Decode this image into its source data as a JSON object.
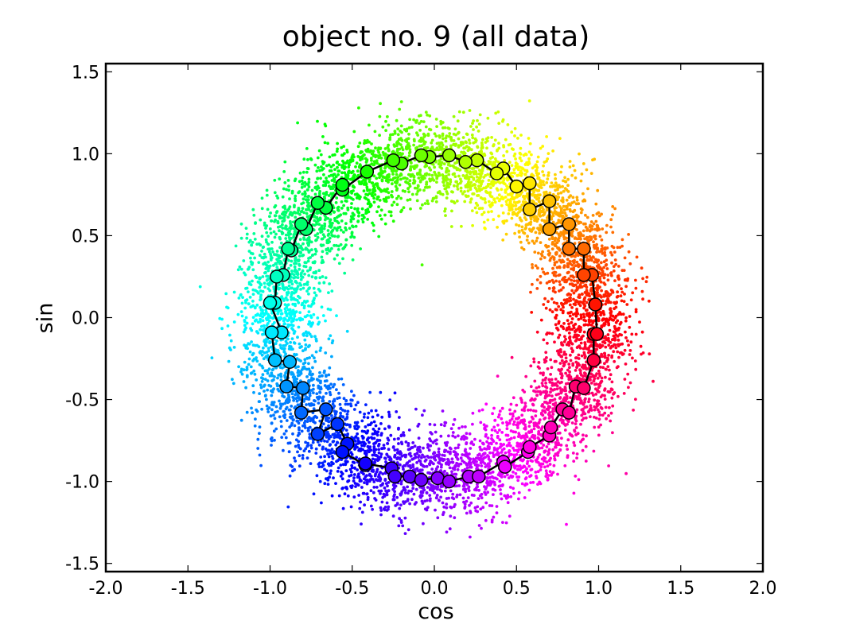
{
  "chart_data": {
    "type": "scatter",
    "title": "object no. 9 (all data)",
    "xlabel": "cos",
    "ylabel": "sin",
    "xlim": [
      -2.0,
      2.0
    ],
    "ylim": [
      -1.55,
      1.55
    ],
    "grid": false,
    "legend": "none",
    "colormap": "hue by angle (red at 0°, yellow 60°, green 120°, cyan 180°, blue 240°, magenta 300°)",
    "x_ticks": [
      -2.0,
      -1.5,
      -1.0,
      -0.5,
      0.0,
      0.5,
      1.0,
      1.5,
      2.0
    ],
    "x_tick_labels": [
      "-2.0",
      "-1.5",
      "-1.0",
      "-0.5",
      "0.0",
      "0.5",
      "1.0",
      "1.5",
      "2.0"
    ],
    "y_ticks": [
      -1.5,
      -1.0,
      -0.5,
      0.0,
      0.5,
      1.0,
      1.5
    ],
    "y_tick_labels": [
      "-1.5",
      "-1.0",
      "-0.5",
      "0.0",
      "0.5",
      "1.0",
      "1.5"
    ],
    "series": [
      {
        "kind": "scatter-cloud",
        "description_of_distribution": "several thousand small points scattered around the unit circle, radius roughly 0.6-1.4, color by angle",
        "approx_count": 7000,
        "radius_mean": 0.97,
        "radius_spread": 0.13
      },
      {
        "kind": "line-with-markers",
        "points": [
          [
            0.98,
            0.08
          ],
          [
            0.96,
            0.26
          ],
          [
            0.91,
            0.26
          ],
          [
            0.91,
            0.42
          ],
          [
            0.82,
            0.42
          ],
          [
            0.82,
            0.57
          ],
          [
            0.7,
            0.54
          ],
          [
            0.7,
            0.71
          ],
          [
            0.58,
            0.66
          ],
          [
            0.58,
            0.82
          ],
          [
            0.5,
            0.8
          ],
          [
            0.42,
            0.91
          ],
          [
            0.38,
            0.88
          ],
          [
            0.26,
            0.96
          ],
          [
            0.19,
            0.95
          ],
          [
            0.09,
            0.99
          ],
          [
            -0.03,
            0.98
          ],
          [
            -0.08,
            0.99
          ],
          [
            -0.2,
            0.94
          ],
          [
            -0.25,
            0.96
          ],
          [
            -0.41,
            0.89
          ],
          [
            -0.56,
            0.78
          ],
          [
            -0.56,
            0.81
          ],
          [
            -0.66,
            0.67
          ],
          [
            -0.71,
            0.7
          ],
          [
            -0.78,
            0.54
          ],
          [
            -0.81,
            0.57
          ],
          [
            -0.87,
            0.41
          ],
          [
            -0.89,
            0.42
          ],
          [
            -0.92,
            0.26
          ],
          [
            -0.96,
            0.25
          ],
          [
            -0.97,
            0.09
          ],
          [
            -1.0,
            0.09
          ],
          [
            -0.93,
            -0.09
          ],
          [
            -0.99,
            -0.09
          ],
          [
            -0.97,
            -0.26
          ],
          [
            -0.88,
            -0.27
          ],
          [
            -0.9,
            -0.42
          ],
          [
            -0.8,
            -0.43
          ],
          [
            -0.81,
            -0.58
          ],
          [
            -0.66,
            -0.56
          ],
          [
            -0.71,
            -0.71
          ],
          [
            -0.59,
            -0.65
          ],
          [
            -0.53,
            -0.77
          ],
          [
            -0.56,
            -0.82
          ],
          [
            -0.42,
            -0.9
          ],
          [
            -0.42,
            -0.89
          ],
          [
            -0.26,
            -0.92
          ],
          [
            -0.24,
            -0.97
          ],
          [
            -0.15,
            -0.97
          ],
          [
            -0.08,
            -0.99
          ],
          [
            0.02,
            -0.98
          ],
          [
            0.09,
            -1.0
          ],
          [
            0.21,
            -0.97
          ],
          [
            0.27,
            -0.97
          ],
          [
            0.42,
            -0.88
          ],
          [
            0.43,
            -0.91
          ],
          [
            0.57,
            -0.82
          ],
          [
            0.58,
            -0.79
          ],
          [
            0.7,
            -0.72
          ],
          [
            0.71,
            -0.67
          ],
          [
            0.78,
            -0.56
          ],
          [
            0.82,
            -0.58
          ],
          [
            0.86,
            -0.42
          ],
          [
            0.91,
            -0.43
          ],
          [
            0.97,
            -0.26
          ],
          [
            0.97,
            -0.1
          ],
          [
            0.99,
            -0.1
          ],
          [
            0.98,
            0.08
          ]
        ]
      }
    ]
  }
}
